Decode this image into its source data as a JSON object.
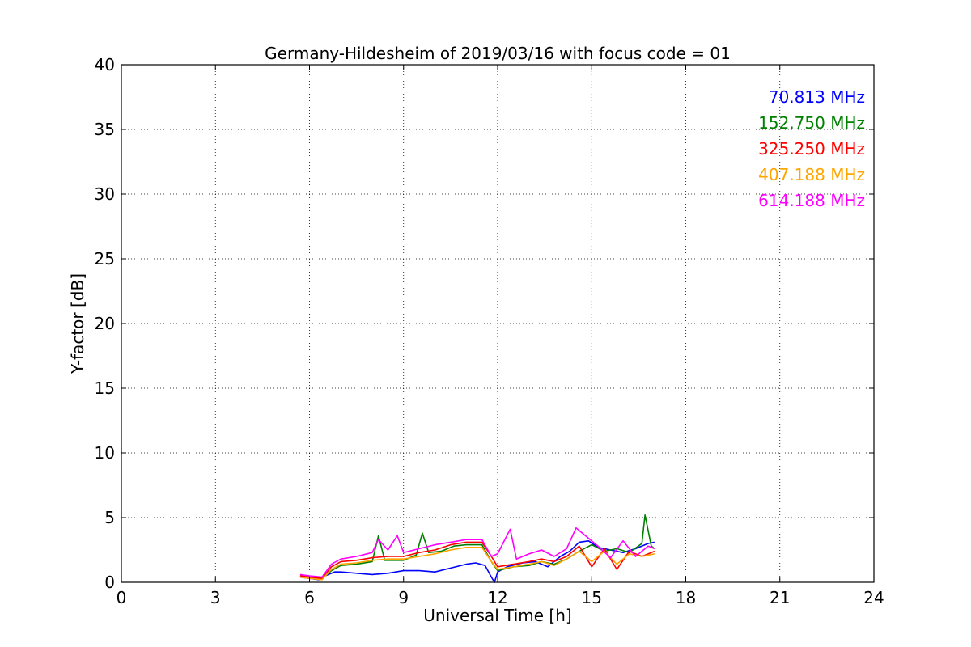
{
  "chart_data": {
    "type": "line",
    "title": "Germany-Hildesheim of 2019/03/16 with focus code = 01",
    "xlabel": "Universal Time [h]",
    "ylabel": "Y-factor [dB]",
    "xlim": [
      0,
      24
    ],
    "ylim": [
      0,
      40
    ],
    "xticks": [
      0,
      3,
      6,
      9,
      12,
      15,
      18,
      21,
      24
    ],
    "yticks": [
      0,
      5,
      10,
      15,
      20,
      25,
      30,
      35,
      40
    ],
    "xtick_labels": [
      "0",
      "3",
      "6",
      "9",
      "12",
      "15",
      "18",
      "21",
      "24"
    ],
    "ytick_labels": [
      "0",
      "5",
      "10",
      "15",
      "20",
      "25",
      "30",
      "35",
      "40"
    ],
    "grid": true,
    "legend_position": "top-right",
    "series": [
      {
        "name": "70.813 MHz",
        "color": "#0000ff",
        "points": [
          [
            5.7,
            0.4
          ],
          [
            6.0,
            0.3
          ],
          [
            6.3,
            0.2
          ],
          [
            6.5,
            0.5
          ],
          [
            6.8,
            0.8
          ],
          [
            7.0,
            0.8
          ],
          [
            7.5,
            0.7
          ],
          [
            8.0,
            0.6
          ],
          [
            8.5,
            0.7
          ],
          [
            9.0,
            0.9
          ],
          [
            9.5,
            0.9
          ],
          [
            10.0,
            0.8
          ],
          [
            10.5,
            1.1
          ],
          [
            11.0,
            1.4
          ],
          [
            11.3,
            1.5
          ],
          [
            11.6,
            1.3
          ],
          [
            11.8,
            0.4
          ],
          [
            11.9,
            0.0
          ],
          [
            12.0,
            0.8
          ],
          [
            12.3,
            1.2
          ],
          [
            12.8,
            1.5
          ],
          [
            13.2,
            1.6
          ],
          [
            13.6,
            1.2
          ],
          [
            14.0,
            2.0
          ],
          [
            14.3,
            2.4
          ],
          [
            14.6,
            3.1
          ],
          [
            14.9,
            3.2
          ],
          [
            15.2,
            2.7
          ],
          [
            15.6,
            2.5
          ],
          [
            16.0,
            2.3
          ],
          [
            16.4,
            2.6
          ],
          [
            16.8,
            3.0
          ],
          [
            17.0,
            3.1
          ]
        ]
      },
      {
        "name": "152.750 MHz",
        "color": "#008000",
        "points": [
          [
            5.7,
            0.5
          ],
          [
            6.0,
            0.4
          ],
          [
            6.4,
            0.3
          ],
          [
            6.7,
            0.9
          ],
          [
            7.0,
            1.3
          ],
          [
            7.5,
            1.4
          ],
          [
            8.0,
            1.6
          ],
          [
            8.2,
            3.6
          ],
          [
            8.4,
            1.7
          ],
          [
            9.0,
            1.7
          ],
          [
            9.4,
            2.1
          ],
          [
            9.6,
            3.8
          ],
          [
            9.8,
            2.3
          ],
          [
            10.2,
            2.4
          ],
          [
            10.6,
            2.8
          ],
          [
            11.0,
            2.9
          ],
          [
            11.5,
            2.9
          ],
          [
            11.8,
            1.6
          ],
          [
            12.0,
            0.9
          ],
          [
            12.5,
            1.2
          ],
          [
            13.0,
            1.3
          ],
          [
            13.4,
            1.6
          ],
          [
            13.8,
            1.4
          ],
          [
            14.2,
            1.8
          ],
          [
            14.6,
            2.4
          ],
          [
            15.0,
            2.9
          ],
          [
            15.4,
            2.4
          ],
          [
            15.8,
            2.6
          ],
          [
            16.2,
            2.3
          ],
          [
            16.6,
            3.0
          ],
          [
            16.7,
            5.2
          ],
          [
            16.9,
            2.8
          ],
          [
            17.0,
            2.6
          ]
        ]
      },
      {
        "name": "325.250 MHz",
        "color": "#ff0000",
        "points": [
          [
            5.7,
            0.5
          ],
          [
            6.0,
            0.4
          ],
          [
            6.4,
            0.3
          ],
          [
            6.7,
            1.2
          ],
          [
            7.0,
            1.6
          ],
          [
            7.5,
            1.7
          ],
          [
            8.0,
            1.9
          ],
          [
            8.5,
            2.0
          ],
          [
            9.0,
            2.0
          ],
          [
            9.5,
            2.3
          ],
          [
            10.0,
            2.5
          ],
          [
            10.5,
            2.9
          ],
          [
            11.0,
            3.1
          ],
          [
            11.5,
            3.1
          ],
          [
            11.8,
            2.0
          ],
          [
            12.0,
            1.2
          ],
          [
            12.5,
            1.4
          ],
          [
            13.0,
            1.6
          ],
          [
            13.4,
            1.8
          ],
          [
            13.8,
            1.6
          ],
          [
            14.2,
            2.0
          ],
          [
            14.6,
            2.8
          ],
          [
            15.0,
            1.2
          ],
          [
            15.4,
            2.6
          ],
          [
            15.8,
            1.0
          ],
          [
            16.2,
            2.4
          ],
          [
            16.6,
            2.0
          ],
          [
            17.0,
            2.4
          ]
        ]
      },
      {
        "name": "407.188 MHz",
        "color": "#ffa500",
        "points": [
          [
            5.7,
            0.4
          ],
          [
            6.0,
            0.3
          ],
          [
            6.4,
            0.2
          ],
          [
            6.7,
            1.0
          ],
          [
            7.0,
            1.4
          ],
          [
            7.5,
            1.5
          ],
          [
            8.0,
            1.7
          ],
          [
            8.5,
            1.8
          ],
          [
            9.0,
            1.8
          ],
          [
            9.5,
            2.0
          ],
          [
            10.0,
            2.2
          ],
          [
            10.5,
            2.5
          ],
          [
            11.0,
            2.7
          ],
          [
            11.5,
            2.7
          ],
          [
            11.8,
            1.6
          ],
          [
            12.0,
            1.0
          ],
          [
            12.5,
            1.2
          ],
          [
            13.0,
            1.4
          ],
          [
            13.4,
            1.6
          ],
          [
            13.8,
            1.3
          ],
          [
            14.2,
            1.8
          ],
          [
            14.6,
            2.4
          ],
          [
            15.0,
            1.6
          ],
          [
            15.4,
            2.4
          ],
          [
            15.8,
            1.4
          ],
          [
            16.2,
            2.2
          ],
          [
            16.6,
            2.0
          ],
          [
            17.0,
            2.2
          ]
        ]
      },
      {
        "name": "614.188 MHz",
        "color": "#ff00ff",
        "points": [
          [
            5.7,
            0.6
          ],
          [
            6.0,
            0.5
          ],
          [
            6.4,
            0.4
          ],
          [
            6.7,
            1.4
          ],
          [
            7.0,
            1.8
          ],
          [
            7.5,
            2.0
          ],
          [
            8.0,
            2.3
          ],
          [
            8.2,
            3.3
          ],
          [
            8.5,
            2.5
          ],
          [
            8.8,
            3.6
          ],
          [
            9.0,
            2.3
          ],
          [
            9.5,
            2.6
          ],
          [
            10.0,
            2.9
          ],
          [
            10.5,
            3.1
          ],
          [
            11.0,
            3.3
          ],
          [
            11.5,
            3.3
          ],
          [
            11.8,
            2.0
          ],
          [
            12.0,
            2.2
          ],
          [
            12.4,
            4.1
          ],
          [
            12.6,
            1.8
          ],
          [
            13.0,
            2.2
          ],
          [
            13.4,
            2.5
          ],
          [
            13.8,
            2.0
          ],
          [
            14.2,
            2.6
          ],
          [
            14.5,
            4.2
          ],
          [
            14.8,
            3.6
          ],
          [
            15.2,
            2.8
          ],
          [
            15.6,
            1.9
          ],
          [
            16.0,
            3.2
          ],
          [
            16.4,
            2.0
          ],
          [
            16.8,
            2.8
          ],
          [
            17.0,
            2.6
          ]
        ]
      }
    ]
  }
}
